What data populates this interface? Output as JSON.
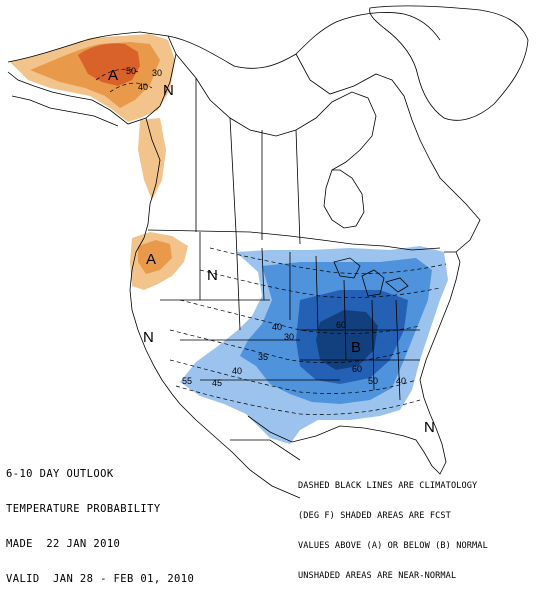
{
  "title": {
    "line1": "6-10 DAY OUTLOOK",
    "line2": "TEMPERATURE PROBABILITY",
    "made": "MADE  22 JAN 2010",
    "valid": "VALID  JAN 28 - FEB 01, 2010"
  },
  "legend": {
    "line1": "DASHED BLACK LINES ARE CLIMATOLOGY",
    "line2": "(DEG F) SHADED AREAS ARE FCST",
    "line3": "VALUES ABOVE (A) OR BELOW (B) NORMAL",
    "line4": "UNSHADED AREAS ARE NEAR-NORMAL"
  },
  "categories": {
    "alaska_above": "A",
    "alaska_normal": "N",
    "northwest_above": "A",
    "plains_normal": "N",
    "southwest_normal": "N",
    "southeast_below": "B",
    "florida_normal": "N"
  },
  "contour_labels": {
    "ak_50": "50",
    "ak_40": "40",
    "ak_30": "30",
    "us_40": "40",
    "us_35": "35",
    "us_30": "30",
    "us_60a": "60",
    "us_60b": "60",
    "us_50": "50",
    "us_55": "55",
    "us_45": "45",
    "us_40b": "40",
    "us_40c": "40"
  },
  "colors": {
    "above_light": "#f2c38a",
    "above_mid": "#e89a4a",
    "above_dark": "#d9622a",
    "below_light": "#9cc3ee",
    "below_mid": "#4f93dc",
    "below_dark": "#2461b4",
    "below_darkest": "#12407f",
    "land_lines": "#000000",
    "water": "#ffffff"
  }
}
